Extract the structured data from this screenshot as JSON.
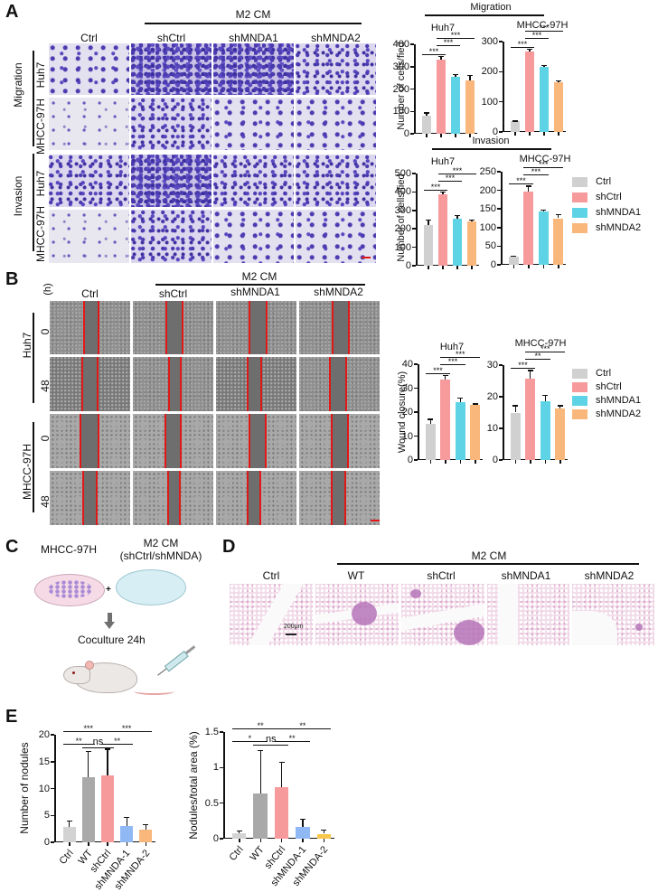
{
  "panels": {
    "A": {
      "label": "A",
      "header_group": "M2 CM",
      "columns": [
        "Ctrl",
        "shCtrl",
        "shMNDA1",
        "shMNDA2"
      ],
      "row_groups": [
        {
          "label": "Migration",
          "rows": [
            "Huh7",
            "MHCC-97H"
          ]
        },
        {
          "label": "Invasion",
          "rows": [
            "Huh7",
            "MHCC-97H"
          ]
        }
      ]
    },
    "B": {
      "label": "B",
      "time_unit": "(h)",
      "header_group": "M2 CM",
      "columns": [
        "Ctrl",
        "shCtrl",
        "shMNDA1",
        "shMNDA2"
      ],
      "row_groups": [
        {
          "label": "Huh7",
          "rows": [
            "0",
            "48"
          ]
        },
        {
          "label": "MHCC-97H",
          "rows": [
            "0",
            "48"
          ]
        }
      ]
    },
    "C": {
      "label": "C",
      "dish1": "MHCC-97H",
      "dish2_line1": "M2 CM",
      "dish2_line2": "(shCtrl/shMNDA)",
      "plus": "+",
      "step": "Coculture 24h"
    },
    "D": {
      "label": "D",
      "header_group": "M2 CM",
      "columns": [
        "Ctrl",
        "WT",
        "shCtrl",
        "shMNDA1",
        "shMNDA2"
      ],
      "scale_bar": "200μm"
    },
    "E": {
      "label": "E"
    }
  },
  "legend": {
    "items": [
      {
        "label": "Ctrl",
        "color": "#d0d0d0"
      },
      {
        "label": "shCtrl",
        "color": "#f79a9c"
      },
      {
        "label": "shMNDA1",
        "color": "#5fd3e6"
      },
      {
        "label": "shMNDA2",
        "color": "#f9b77c"
      }
    ]
  },
  "chart_data": [
    {
      "type": "bar",
      "panel": "A",
      "group_title": "Migration",
      "title": "Huh7",
      "ylabel": "Number of cells/fied",
      "ylim": [
        0,
        400
      ],
      "yticks": [
        0,
        100,
        200,
        300,
        400
      ],
      "categories": [
        "Ctrl",
        "shCtrl",
        "shMNDA1",
        "shMNDA2"
      ],
      "values": [
        80,
        333,
        253,
        240
      ],
      "errors": [
        15,
        15,
        15,
        22
      ],
      "significance": [
        {
          "from": 0,
          "to": 1,
          "label": "***"
        },
        {
          "from": 1,
          "to": 2,
          "label": "***"
        },
        {
          "from": 1,
          "to": 3,
          "label": "***"
        }
      ]
    },
    {
      "type": "bar",
      "panel": "A",
      "group_title": "Migration",
      "title": "MHCC-97H",
      "ylabel": "",
      "ylim": [
        0,
        300
      ],
      "yticks": [
        0,
        100,
        200,
        300
      ],
      "categories": [
        "Ctrl",
        "shCtrl",
        "shMNDA1",
        "shMNDA2"
      ],
      "values": [
        35,
        268,
        216,
        165
      ],
      "errors": [
        3,
        8,
        7,
        6
      ],
      "significance": [
        {
          "from": 0,
          "to": 1,
          "label": "***"
        },
        {
          "from": 1,
          "to": 2,
          "label": "***"
        },
        {
          "from": 1,
          "to": 3,
          "label": "***"
        }
      ]
    },
    {
      "type": "bar",
      "panel": "A",
      "group_title": "Invasion",
      "title": "Huh7",
      "ylabel": "Number of cells/fied",
      "ylim": [
        0,
        500
      ],
      "yticks": [
        0,
        100,
        200,
        300,
        400,
        500
      ],
      "categories": [
        "Ctrl",
        "shCtrl",
        "shMNDA1",
        "shMNDA2"
      ],
      "values": [
        222,
        388,
        257,
        238
      ],
      "errors": [
        28,
        14,
        18,
        14
      ],
      "significance": [
        {
          "from": 0,
          "to": 1,
          "label": "***"
        },
        {
          "from": 1,
          "to": 2,
          "label": "***"
        },
        {
          "from": 1,
          "to": 3,
          "label": "***"
        }
      ]
    },
    {
      "type": "bar",
      "panel": "A",
      "group_title": "Invasion",
      "title": "MHCC-97H",
      "ylabel": "",
      "ylim": [
        0,
        250
      ],
      "yticks": [
        0,
        50,
        100,
        150,
        200,
        250
      ],
      "categories": [
        "Ctrl",
        "shCtrl",
        "shMNDA1",
        "shMNDA2"
      ],
      "values": [
        22,
        197,
        144,
        125
      ],
      "errors": [
        2,
        16,
        5,
        11
      ],
      "significance": [
        {
          "from": 0,
          "to": 1,
          "label": "***"
        },
        {
          "from": 1,
          "to": 2,
          "label": "***"
        },
        {
          "from": 1,
          "to": 3,
          "label": "***"
        }
      ]
    },
    {
      "type": "bar",
      "panel": "B",
      "title": "Huh7",
      "ylabel": "Wound closure(%)",
      "ylim": [
        0,
        40
      ],
      "yticks": [
        0,
        10,
        20,
        30,
        40
      ],
      "categories": [
        "Ctrl",
        "shCtrl",
        "shMNDA1",
        "shMNDA2"
      ],
      "values": [
        15.2,
        33.5,
        24,
        23
      ],
      "errors": [
        2,
        2,
        2,
        0.6
      ],
      "significance": [
        {
          "from": 0,
          "to": 1,
          "label": "***"
        },
        {
          "from": 1,
          "to": 2,
          "label": "***"
        },
        {
          "from": 1,
          "to": 3,
          "label": "***"
        }
      ]
    },
    {
      "type": "bar",
      "panel": "B",
      "title": "MHCC-97H",
      "ylabel": "",
      "ylim": [
        0,
        30
      ],
      "yticks": [
        0,
        10,
        20,
        30
      ],
      "categories": [
        "Ctrl",
        "shCtrl",
        "shMNDA1",
        "shMNDA2"
      ],
      "values": [
        15,
        25.7,
        18.6,
        16.2
      ],
      "errors": [
        2.3,
        2.8,
        2,
        1.1
      ],
      "significance": [
        {
          "from": 0,
          "to": 1,
          "label": "***"
        },
        {
          "from": 1,
          "to": 2,
          "label": "**"
        },
        {
          "from": 1,
          "to": 3,
          "label": "***"
        }
      ]
    },
    {
      "type": "bar",
      "panel": "E",
      "title": "",
      "ylabel": "Number of nodules",
      "ylim": [
        0,
        20
      ],
      "yticks": [
        0,
        5,
        10,
        15,
        20
      ],
      "categories": [
        "Ctrl",
        "WT",
        "shCtrl",
        "shMNDA-1",
        "shMNDA-2"
      ],
      "colors": [
        "#d3d3d3",
        "#a9a9a9",
        "#f79a9c",
        "#8fb8f5",
        "#f9b77c"
      ],
      "values": [
        2.8,
        12.1,
        12.5,
        3.0,
        2.4
      ],
      "errors": [
        1.2,
        4.9,
        4.9,
        1.7,
        1.0
      ],
      "significance": [
        {
          "from": 0,
          "to": 1,
          "label": "**"
        },
        {
          "from": 1,
          "to": 2,
          "label": "ns"
        },
        {
          "from": 2,
          "to": 3,
          "label": "**"
        },
        {
          "from": 0,
          "to": 2,
          "label": "***"
        },
        {
          "from": 2,
          "to": 4,
          "label": "***"
        }
      ]
    },
    {
      "type": "bar",
      "panel": "E",
      "title": "",
      "ylabel": "Nodules/total area (%)",
      "ylim": [
        0,
        1.5
      ],
      "yticks": [
        0,
        0.5,
        1.0,
        1.5
      ],
      "categories": [
        "Ctrl",
        "WT",
        "shCtrl",
        "shMNDA-1",
        "shMNDA-2"
      ],
      "colors": [
        "#d3d3d3",
        "#a9a9a9",
        "#f79a9c",
        "#8fb8f5",
        "#f9c74a"
      ],
      "values": [
        0.08,
        0.64,
        0.72,
        0.16,
        0.07
      ],
      "errors": [
        0.04,
        0.61,
        0.36,
        0.12,
        0.06
      ],
      "significance": [
        {
          "from": 0,
          "to": 1,
          "label": "*"
        },
        {
          "from": 1,
          "to": 2,
          "label": "ns"
        },
        {
          "from": 2,
          "to": 3,
          "label": "**"
        },
        {
          "from": 0,
          "to": 2,
          "label": "**"
        },
        {
          "from": 2,
          "to": 4,
          "label": "**"
        }
      ]
    }
  ]
}
